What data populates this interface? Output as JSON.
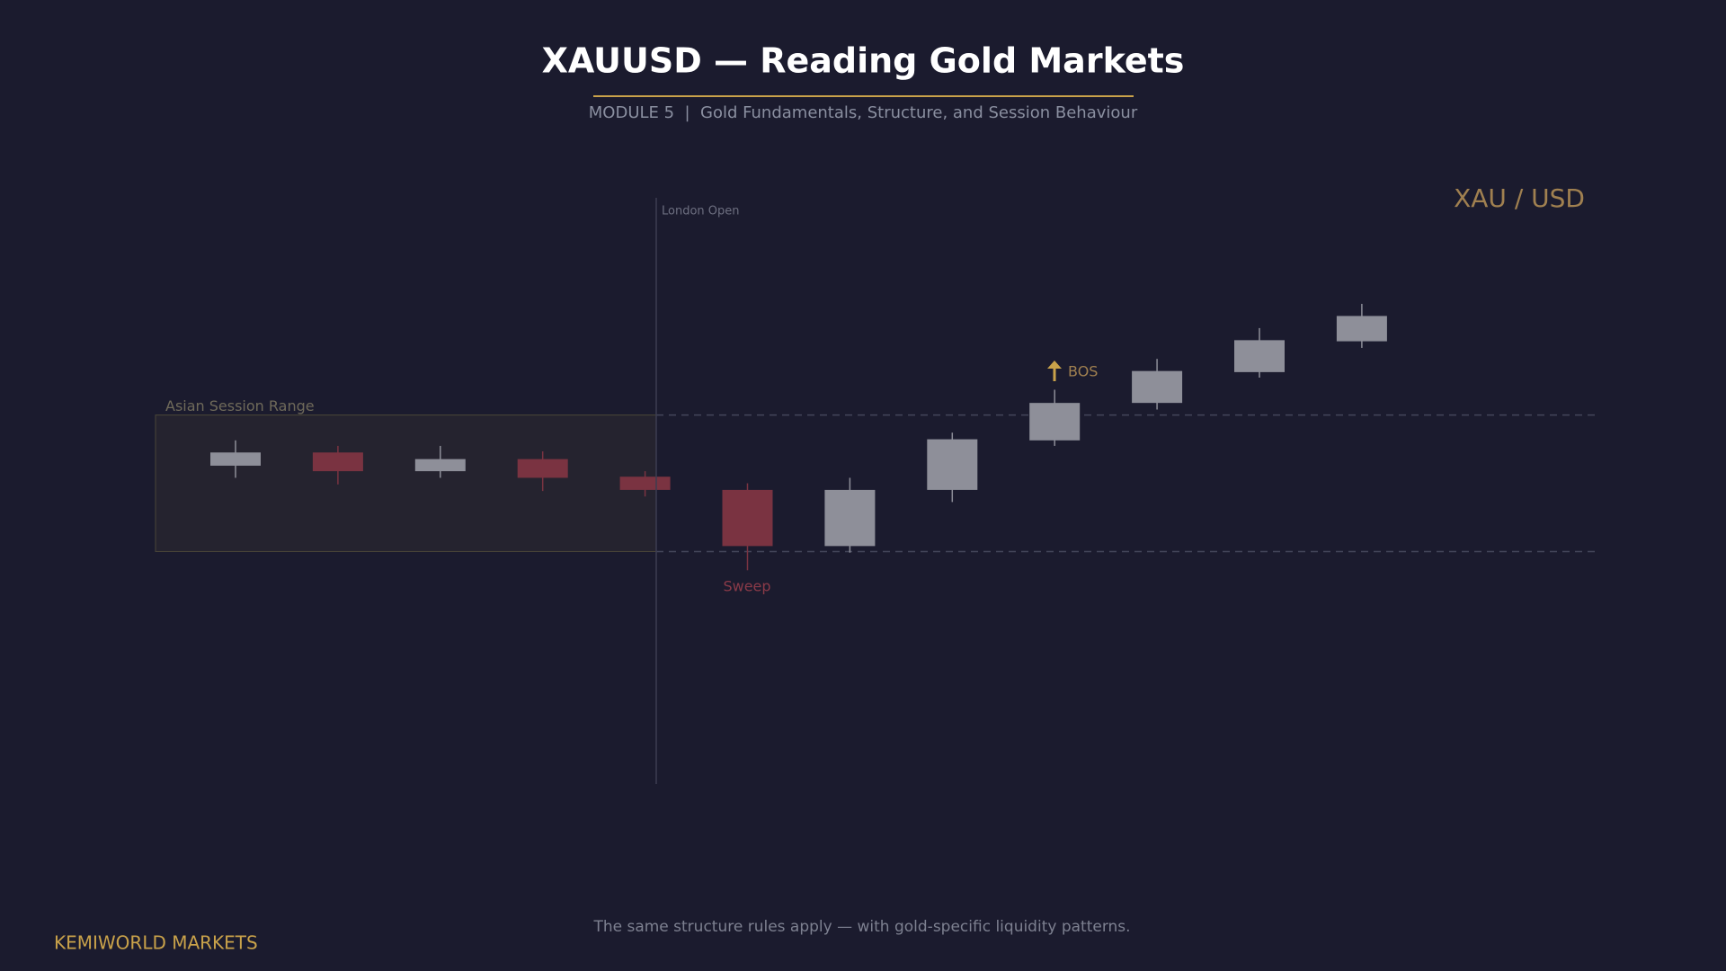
{
  "header": {
    "title": "XAUUSD — Reading Gold Markets",
    "subtitle": "MODULE 5  |  Gold Fundamentals, Structure, and Session Behaviour"
  },
  "chart_data": {
    "type": "candlestick",
    "title": "XAU / USD",
    "open": [
      88.5,
      94.5,
      86,
      91.5,
      83.5,
      77.5,
      52,
      77.5,
      100,
      117,
      131,
      145
    ],
    "high": [
      100,
      97.5,
      97.5,
      95,
      86,
      80.5,
      83,
      103.5,
      123,
      137,
      151,
      162
    ],
    "low": [
      83,
      80,
      83,
      77,
      74.5,
      41,
      49,
      72,
      97.5,
      114,
      128.5,
      142
    ],
    "close": [
      94.5,
      86,
      91.5,
      83,
      77.5,
      52,
      77.5,
      100.5,
      117,
      131.5,
      145.5,
      156.5
    ],
    "up_color": "#8e8f99",
    "down_color": "#7a3341",
    "range": {
      "label": "Asian Session Range",
      "high": 111.5,
      "low": 49.5
    },
    "annotations": {
      "london_open": "London Open",
      "sweep": "Sweep",
      "bos": "BOS"
    }
  },
  "footer": {
    "caption": "The same structure rules apply — with gold-specific liquidity patterns.",
    "brand": "KEMIWORLD MARKETS"
  }
}
